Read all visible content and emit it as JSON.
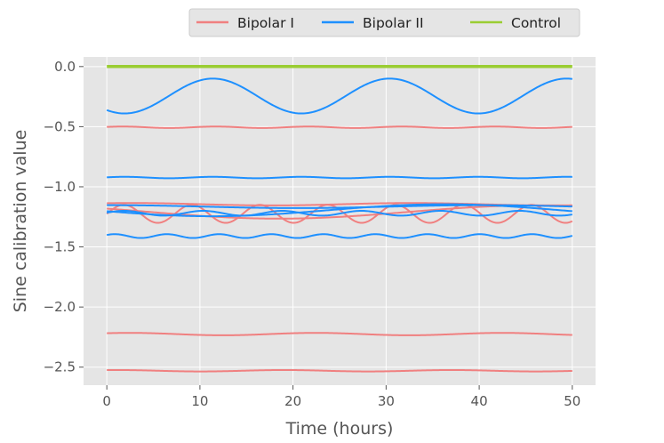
{
  "chart_data": {
    "type": "line",
    "title": "",
    "xlabel": "Time (hours)",
    "ylabel": "Sine calibration value",
    "xlim": [
      -2.5,
      52.5
    ],
    "ylim": [
      -2.65,
      0.08
    ],
    "xticks": [
      0,
      10,
      20,
      30,
      40,
      50
    ],
    "xtick_labels": [
      "0",
      "10",
      "20",
      "30",
      "40",
      "50"
    ],
    "yticks": [
      0.0,
      -0.5,
      -1.0,
      -1.5,
      -2.0,
      -2.5
    ],
    "ytick_labels": [
      "0.0",
      "−0.5",
      "−1.0",
      "−1.5",
      "−2.0",
      "−2.5"
    ],
    "grid": true,
    "legend_position": "top-right, outside plot",
    "groups": [
      {
        "name": "Bipolar I",
        "color": "#F08080"
      },
      {
        "name": "Bipolar II",
        "color": "#1E90FF"
      },
      {
        "name": "Control",
        "color": "#9ACD32"
      }
    ],
    "x_range": [
      0,
      50
    ],
    "series": [
      {
        "group": "Bipolar I",
        "offset": -0.505,
        "amplitude": 0.006,
        "period_hours": 10,
        "phase": 0.5
      },
      {
        "group": "Bipolar I",
        "offset": -1.225,
        "amplitude": 0.075,
        "period_hours": 7.3,
        "phase": 0.0
      },
      {
        "group": "Bipolar I",
        "offset": -1.145,
        "amplitude": 0.01,
        "period_hours": 30,
        "phase": 1.0
      },
      {
        "group": "Bipolar I",
        "offset": -1.21,
        "amplitude": 0.055,
        "period_hours": 55,
        "phase": 2.6
      },
      {
        "group": "Bipolar I",
        "offset": -2.225,
        "amplitude": 0.01,
        "period_hours": 20,
        "phase": 0.8
      },
      {
        "group": "Bipolar I",
        "offset": -2.53,
        "amplitude": 0.006,
        "period_hours": 18,
        "phase": 1.2
      },
      {
        "group": "Bipolar II",
        "offset": -0.245,
        "amplitude": 0.145,
        "period_hours": 19,
        "phase": -2.2
      },
      {
        "group": "Bipolar II",
        "offset": -0.923,
        "amplitude": 0.006,
        "period_hours": 9.5,
        "phase": 0.3
      },
      {
        "group": "Bipolar II",
        "offset": -1.165,
        "amplitude": 0.012,
        "period_hours": 40,
        "phase": 1.5
      },
      {
        "group": "Bipolar II",
        "offset": -1.195,
        "amplitude": 0.05,
        "period_hours": 50,
        "phase": 3.3
      },
      {
        "group": "Bipolar II",
        "offset": -1.22,
        "amplitude": 0.02,
        "period_hours": 8.5,
        "phase": 0.2
      },
      {
        "group": "Bipolar II",
        "offset": -1.41,
        "amplitude": 0.016,
        "period_hours": 5.6,
        "phase": 0.6
      },
      {
        "group": "Control",
        "offset": 0.0,
        "amplitude": 0.0,
        "period_hours": 24,
        "phase": 0.0
      }
    ]
  }
}
